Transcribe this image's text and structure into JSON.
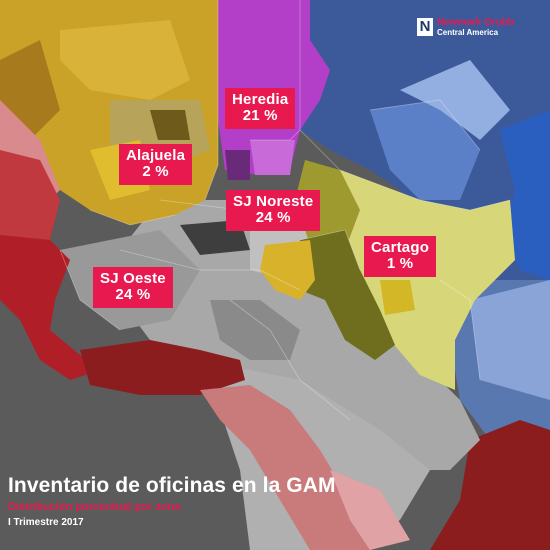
{
  "title": "Inventario de oficinas en la GAM",
  "subtitle": "Distribución porcentual por zona",
  "period": "I Trimestre 2017",
  "logo": {
    "mark": "N",
    "brand": "Newmark Grubb",
    "sub": "Central America"
  },
  "zones": [
    {
      "name": "Heredia",
      "share": "21 %",
      "value": 21,
      "color": "#b33ec8"
    },
    {
      "name": "Alajuela",
      "share": "2 %",
      "value": 2,
      "color": "#c9a227"
    },
    {
      "name": "SJ Noreste",
      "share": "24 %",
      "value": 24,
      "color": "#6e6e1e"
    },
    {
      "name": "Cartago",
      "share": "1 %",
      "value": 1,
      "color": "#d7d77a"
    },
    {
      "name": "SJ Oeste",
      "share": "24 %",
      "value": 24,
      "color": "#b01e28"
    }
  ],
  "colors": {
    "accent": "#e8194f",
    "background": "#5a5a5a",
    "east": "#3c5a9a"
  }
}
